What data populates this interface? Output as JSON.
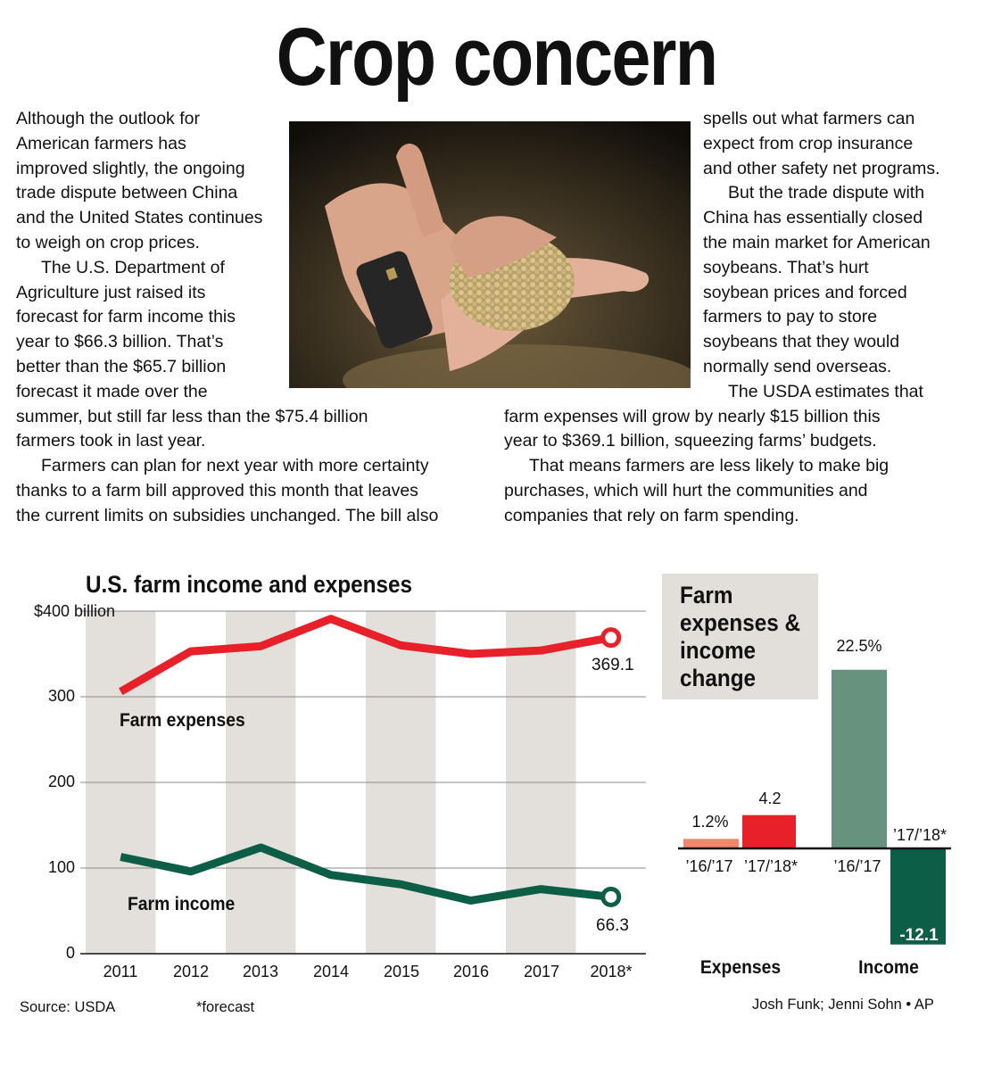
{
  "headline": "Crop concern",
  "article": {
    "left_col": [
      "Although the outlook for",
      "American farmers has",
      "improved slightly, the ongoing",
      "trade dispute between China",
      "and the United States continues",
      "to weigh on crop prices.",
      "The U.S. Department of",
      "Agriculture just raised its",
      "forecast for farm income this",
      "year to $66.3 billion. That’s",
      "better than the $65.7 billion",
      "forecast it made over the",
      "summer, but still far less than the $75.4 billion",
      "farmers took in last year.",
      "Farmers can plan for next year with more certainty",
      "thanks to a farm bill approved this month that leaves",
      "the current limits on subsidies unchanged. The bill also"
    ],
    "right_col": [
      "spells out what farmers can",
      "expect from crop insurance",
      "and other safety net programs.",
      "But the trade dispute with",
      "China has essentially closed",
      "the main market for American",
      "soybeans. That’s hurt",
      "soybean prices and forced",
      "farmers to pay to store",
      "soybeans that they would",
      "normally send overseas.",
      "The USDA estimates that",
      "farm expenses will grow by nearly $15 billion this",
      "year to $369.1 billion, squeezing farms’ budgets.",
      "That means farmers are less likely to make big",
      "purchases, which will hurt the communities and",
      "companies that rely on farm spending."
    ]
  },
  "chart_data": [
    {
      "type": "line",
      "title": "U.S. farm income and expenses",
      "y_unit_label": "$400 billion",
      "x": [
        "2011",
        "2012",
        "2013",
        "2014",
        "2015",
        "2016",
        "2017",
        "2018*"
      ],
      "yticks": [
        "0",
        "100",
        "200",
        "300"
      ],
      "ylim": [
        0,
        400
      ],
      "series": [
        {
          "name": "Farm expenses",
          "values": [
            306,
            353,
            359,
            391,
            360,
            350,
            354,
            369.1
          ],
          "color": "#e8202a"
        },
        {
          "name": "Farm income",
          "values": [
            113,
            96,
            124,
            92,
            81,
            62,
            75.4,
            66.3
          ],
          "color": "#0d5e46"
        }
      ],
      "end_labels": [
        "369.1",
        "66.3"
      ],
      "shaded_years": [
        "2011",
        "2013",
        "2015",
        "2017"
      ]
    },
    {
      "type": "bar",
      "title": "Farm expenses & income change",
      "groups": [
        {
          "name": "Expenses",
          "bars": [
            {
              "label": "’16/’17",
              "value": 1.2,
              "text": "1.2%",
              "color": "#f0866c"
            },
            {
              "label": "’17/’18*",
              "value": 4.2,
              "text": "4.2",
              "color": "#e8202a"
            }
          ]
        },
        {
          "name": "Income",
          "bars": [
            {
              "label": "’16/’17",
              "value": 22.5,
              "text": "22.5%",
              "color": "#66927e"
            },
            {
              "label": "’17/’18*",
              "value": -12.1,
              "text": "-12.1",
              "color": "#0d5e46"
            }
          ]
        }
      ],
      "unit": "percent"
    }
  ],
  "footer": {
    "source": "Source: USDA",
    "note": "*forecast",
    "credit": "Josh Funk; Jenni Sohn • AP"
  }
}
